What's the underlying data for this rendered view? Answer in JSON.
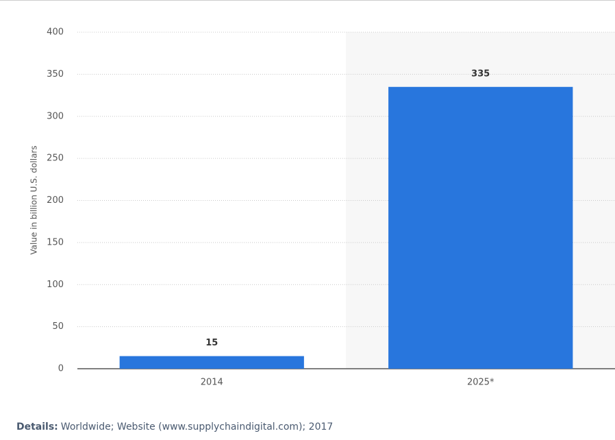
{
  "chart_data": {
    "type": "bar",
    "y_label": "Value in billion U.S. dollars",
    "categories": [
      "2014",
      "2025*"
    ],
    "values": [
      15,
      335
    ],
    "color": "#2876dd",
    "ylim": [
      0,
      400
    ],
    "yticks": [
      0,
      50,
      100,
      150,
      200,
      250,
      300,
      350,
      400
    ],
    "grid": true
  },
  "footer": {
    "label": "Details:",
    "text": "Worldwide; Website (www.supplychaindigital.com); 2017"
  }
}
